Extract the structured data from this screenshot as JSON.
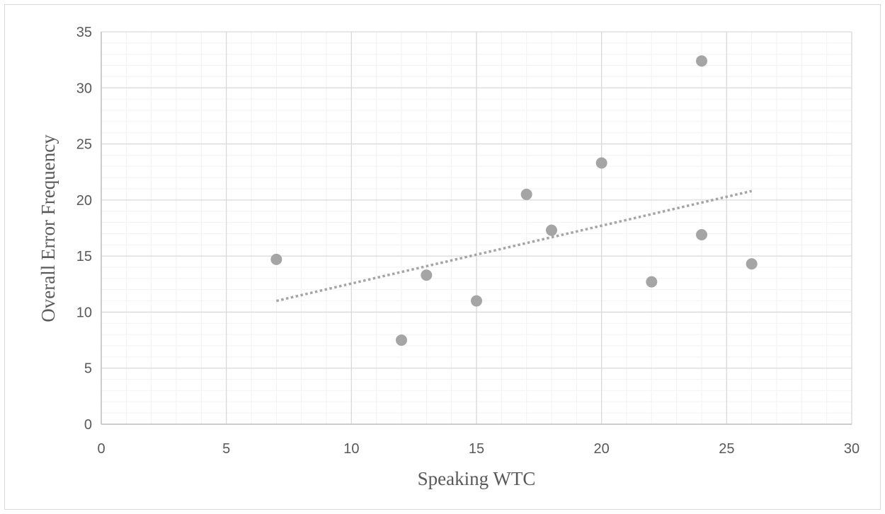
{
  "chart_data": {
    "type": "scatter",
    "title": "",
    "xlabel": "Speaking WTC",
    "ylabel": "Overall Error Frequency",
    "xlim": [
      0,
      30
    ],
    "ylim": [
      0,
      35
    ],
    "x_ticks": [
      0,
      5,
      10,
      15,
      20,
      25,
      30
    ],
    "y_ticks": [
      0,
      5,
      10,
      15,
      20,
      25,
      30,
      35
    ],
    "grid": true,
    "minor_grid": true,
    "legend": "none",
    "points": [
      {
        "x": 7,
        "y": 14.7
      },
      {
        "x": 12,
        "y": 7.5
      },
      {
        "x": 13,
        "y": 13.3
      },
      {
        "x": 15,
        "y": 11.0
      },
      {
        "x": 17,
        "y": 20.5
      },
      {
        "x": 18,
        "y": 17.3
      },
      {
        "x": 20,
        "y": 23.3
      },
      {
        "x": 22,
        "y": 12.7
      },
      {
        "x": 24,
        "y": 32.4
      },
      {
        "x": 24,
        "y": 16.9
      },
      {
        "x": 26,
        "y": 14.3
      }
    ],
    "trendline": {
      "type": "linear",
      "x_start": 7,
      "x_end": 26,
      "y_start": 11.0,
      "y_end": 20.8
    },
    "colors": {
      "marker": "#a5a5a5",
      "trendline": "#a5a5a5",
      "major_grid": "#d9d9d9",
      "minor_grid": "#f2f2f2",
      "text": "#595959"
    }
  }
}
